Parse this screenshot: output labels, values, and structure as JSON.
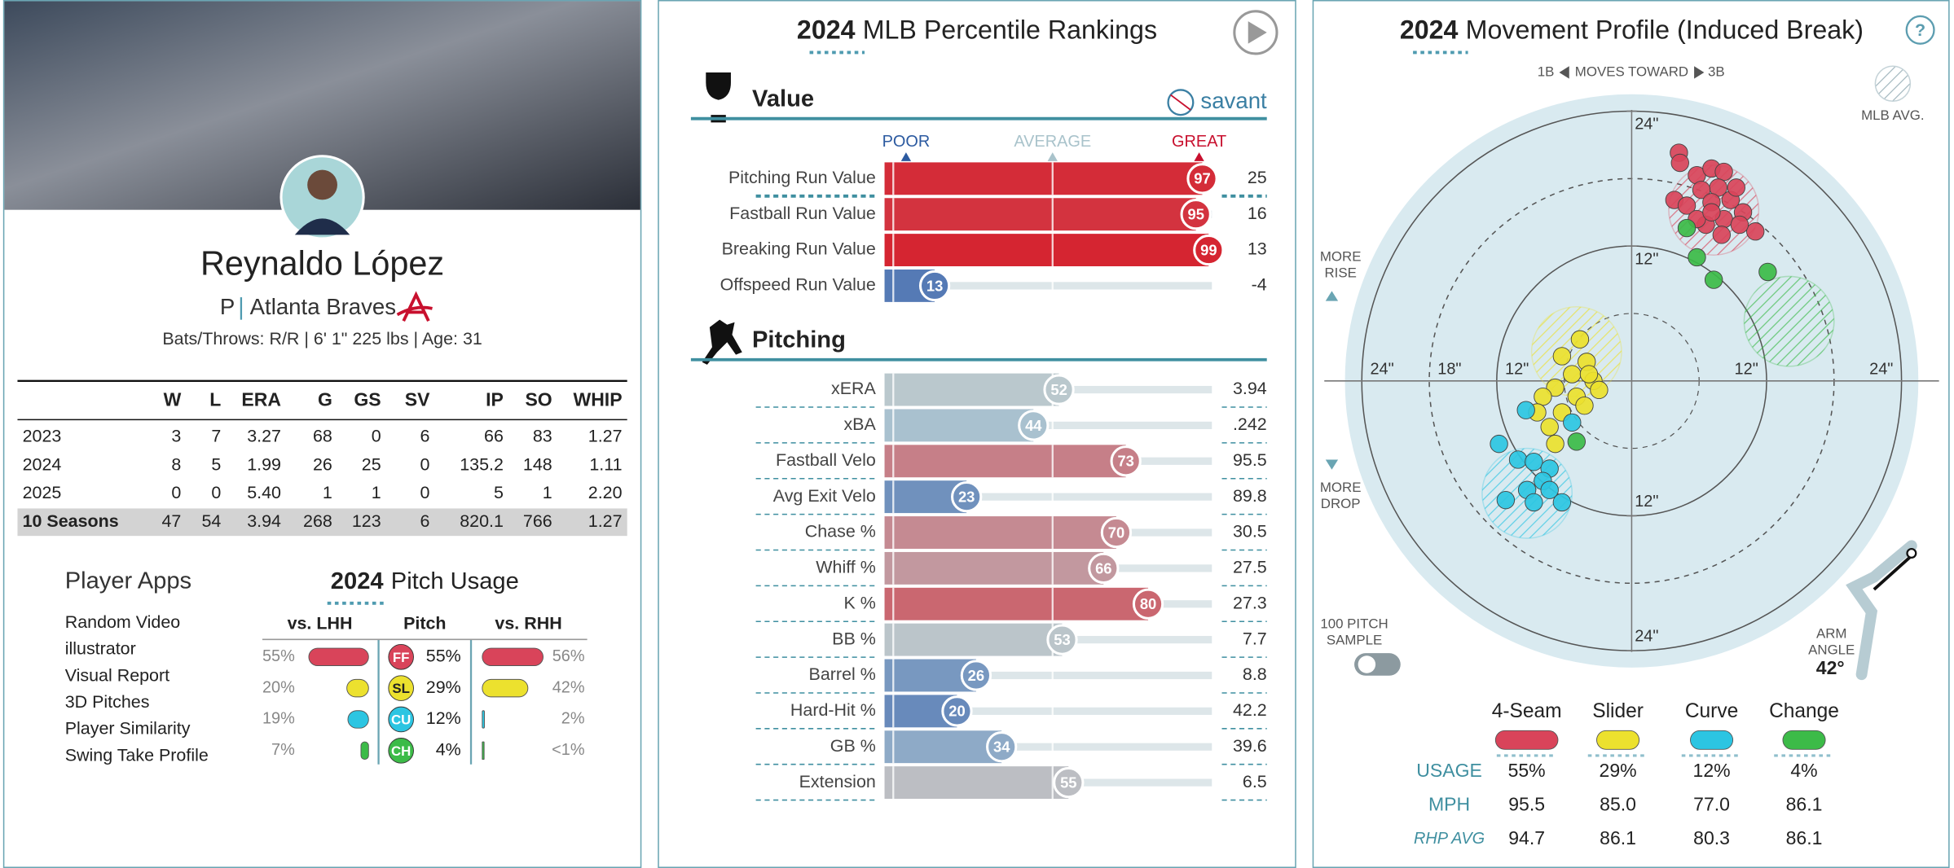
{
  "profile": {
    "name": "Reynaldo López",
    "position": "P",
    "team": "Atlanta Braves",
    "bio": "Bats/Throws: R/R | 6' 1\" 225 lbs | Age: 31"
  },
  "stats": {
    "headers": [
      "W",
      "L",
      "ERA",
      "G",
      "GS",
      "SV",
      "IP",
      "SO",
      "WHIP"
    ],
    "rows": [
      {
        "label": "2023",
        "values": [
          "3",
          "7",
          "3.27",
          "68",
          "0",
          "6",
          "66",
          "83",
          "1.27"
        ]
      },
      {
        "label": "2024",
        "values": [
          "8",
          "5",
          "1.99",
          "26",
          "25",
          "0",
          "135.2",
          "148",
          "1.11"
        ]
      },
      {
        "label": "2025",
        "values": [
          "0",
          "0",
          "5.40",
          "1",
          "1",
          "0",
          "5",
          "1",
          "2.20"
        ]
      },
      {
        "label": "10 Seasons",
        "values": [
          "47",
          "54",
          "3.94",
          "268",
          "123",
          "6",
          "820.1",
          "766",
          "1.27"
        ]
      }
    ]
  },
  "player_apps": {
    "title": "Player Apps",
    "items": [
      "Random Video",
      "illustrator",
      "Visual Report",
      "3D Pitches",
      "Player Similarity",
      "Swing Take Profile"
    ]
  },
  "pitch_usage": {
    "year": "2024",
    "title": "Pitch Usage",
    "headers": [
      "vs. LHH",
      "Pitch",
      "vs. RHH"
    ],
    "rows": [
      {
        "code": "FF",
        "color": "#d9445a",
        "usage": "55%",
        "lhh": {
          "value": 55,
          "label": "55%"
        },
        "rhh": {
          "value": 56,
          "label": "56%"
        }
      },
      {
        "code": "SL",
        "color": "#ece12e",
        "usage": "29%",
        "lhh": {
          "value": 20,
          "label": "20%"
        },
        "rhh": {
          "value": 42,
          "label": "42%"
        }
      },
      {
        "code": "CU",
        "color": "#2cc5e2",
        "usage": "12%",
        "lhh": {
          "value": 19,
          "label": "19%"
        },
        "rhh": {
          "value": 2,
          "label": "2%"
        }
      },
      {
        "code": "CH",
        "color": "#3cbb48",
        "usage": "4%",
        "lhh": {
          "value": 7,
          "label": "7%"
        },
        "rhh": {
          "value": 0.5,
          "label": "<1%"
        }
      }
    ]
  },
  "percentile": {
    "year": "2024",
    "title": "MLB Percentile Rankings",
    "logo": "savant",
    "scale": [
      "POOR",
      "AVERAGE",
      "GREAT"
    ],
    "sections": [
      {
        "title": "Value",
        "rows": [
          {
            "name": "Pitching Run Value",
            "percentile": 97,
            "value": "25"
          },
          {
            "name": "Fastball Run Value",
            "percentile": 95,
            "value": "16"
          },
          {
            "name": "Breaking Run Value",
            "percentile": 99,
            "value": "13"
          },
          {
            "name": "Offspeed Run Value",
            "percentile": 13,
            "value": "-4"
          }
        ]
      },
      {
        "title": "Pitching",
        "rows": [
          {
            "name": "xERA",
            "percentile": 52,
            "value": "3.94"
          },
          {
            "name": "xBA",
            "percentile": 44,
            "value": ".242"
          },
          {
            "name": "Fastball Velo",
            "percentile": 73,
            "value": "95.5"
          },
          {
            "name": "Avg Exit Velo",
            "percentile": 23,
            "value": "89.8"
          },
          {
            "name": "Chase %",
            "percentile": 70,
            "value": "30.5"
          },
          {
            "name": "Whiff %",
            "percentile": 66,
            "value": "27.5"
          },
          {
            "name": "K %",
            "percentile": 80,
            "value": "27.3"
          },
          {
            "name": "BB %",
            "percentile": 53,
            "value": "7.7"
          },
          {
            "name": "Barrel %",
            "percentile": 26,
            "value": "8.8"
          },
          {
            "name": "Hard-Hit %",
            "percentile": 20,
            "value": "42.2"
          },
          {
            "name": "GB %",
            "percentile": 34,
            "value": "39.6"
          },
          {
            "name": "Extension",
            "percentile": 55,
            "value": "6.5"
          }
        ]
      }
    ]
  },
  "movement": {
    "year": "2024",
    "title": "Movement Profile (Induced Break)",
    "help": "?",
    "direction": [
      "1B",
      "MOVES TOWARD",
      "3B"
    ],
    "mlb_avg": "MLB AVG.",
    "rise": [
      "MORE",
      "RISE"
    ],
    "drop": [
      "MORE",
      "DROP"
    ],
    "sample": [
      "100 PITCH",
      "SAMPLE"
    ],
    "arm_angle_label": [
      "ARM",
      "ANGLE"
    ],
    "arm_angle": "42°",
    "xlim": [
      -25.5,
      25.5
    ],
    "ylim": [
      -25.5,
      25.5
    ],
    "xticks": [
      {
        "value": -24,
        "label": "24\""
      },
      {
        "value": -18,
        "label": "18\""
      },
      {
        "value": -12,
        "label": "12\""
      },
      {
        "value": 12,
        "label": "12\""
      },
      {
        "value": 24,
        "label": "24\""
      }
    ],
    "yticks": [
      {
        "value": 24,
        "label": "24\""
      },
      {
        "value": 12,
        "label": "12\""
      },
      {
        "value": -12,
        "label": "12\""
      },
      {
        "value": -24,
        "label": "24\""
      }
    ],
    "row_labels": [
      "USAGE",
      "MPH",
      "RHP AVG"
    ],
    "pitches": [
      {
        "name": "4-Seam",
        "color": "#d9445a",
        "usage": "55%",
        "mph": "95.5",
        "rhp_avg": "94.7",
        "avg_x": 7.3,
        "avg_y": 15.2,
        "x": [
          4.2,
          4.3,
          5.8,
          7.1,
          8.2,
          7.7,
          6.2,
          8.8,
          7.1,
          3.8,
          4.9,
          9.3,
          8.2,
          9.9,
          11.0,
          6.6,
          8.0,
          5.8,
          9.6,
          7.1
        ],
        "y": [
          20.3,
          19.4,
          18.3,
          18.9,
          18.6,
          17.2,
          17.0,
          16.1,
          15.9,
          16.1,
          15.6,
          17.2,
          14.4,
          15.0,
          13.3,
          13.9,
          13.0,
          14.4,
          13.9,
          15.0
        ]
      },
      {
        "name": "Slider",
        "color": "#ece12e",
        "usage": "29%",
        "mph": "85.0",
        "rhp_avg": "86.1",
        "avg_x": -4.9,
        "avg_y": 2.6,
        "x": [
          -4.6,
          -6.2,
          -4.0,
          -5.3,
          -3.4,
          -6.8,
          -4.9,
          -2.9,
          -7.9,
          -8.4,
          -6.2,
          -4.2,
          -7.3,
          -6.8,
          -3.8
        ],
        "y": [
          3.7,
          2.2,
          1.7,
          0.6,
          0.0,
          -0.6,
          -1.4,
          -0.8,
          -1.4,
          -2.8,
          -2.8,
          -2.2,
          -4.1,
          -5.6,
          0.6
        ]
      },
      {
        "name": "Curve",
        "color": "#2cc5e2",
        "usage": "12%",
        "mph": "77.0",
        "rhp_avg": "80.3",
        "avg_x": -9.3,
        "avg_y": -10.0,
        "x": [
          -9.4,
          -11.8,
          -10.1,
          -8.7,
          -7.3,
          -7.9,
          -9.3,
          -7.3,
          -11.2,
          -8.7,
          -6.2,
          -5.3
        ],
        "y": [
          -2.6,
          -5.6,
          -7.0,
          -7.2,
          -7.8,
          -8.9,
          -9.7,
          -9.7,
          -10.6,
          -10.8,
          -10.8,
          -3.7
        ]
      },
      {
        "name": "Change",
        "color": "#3cbb48",
        "usage": "4%",
        "mph": "86.1",
        "rhp_avg": "86.1",
        "avg_x": 14.0,
        "avg_y": 5.3,
        "x": [
          4.9,
          5.8,
          7.3,
          12.1,
          -4.9
        ],
        "y": [
          13.6,
          11.0,
          9.0,
          9.7,
          -5.4
        ]
      }
    ]
  }
}
